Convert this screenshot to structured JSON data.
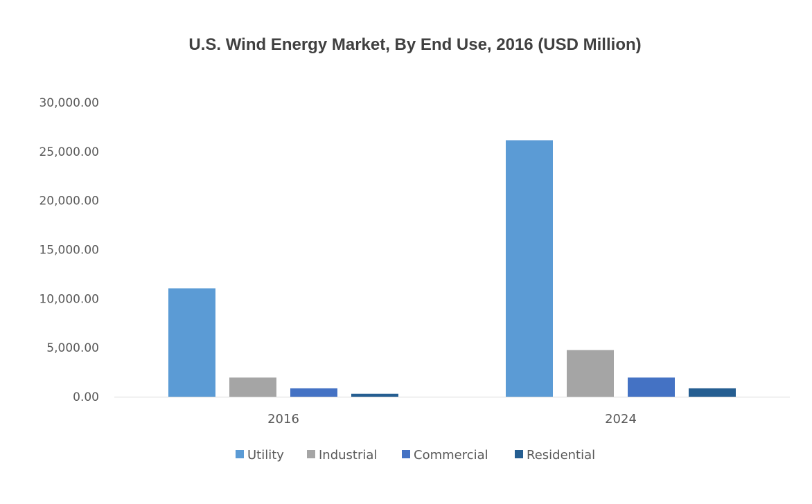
{
  "chart_data": {
    "type": "bar",
    "title": "U.S. Wind Energy Market, By End Use, 2016 (USD Million)",
    "xlabel": "",
    "ylabel": "",
    "ylim": [
      0,
      30000
    ],
    "yticks": [
      "0.00",
      "5,000.00",
      "10,000.00",
      "15,000.00",
      "20,000.00",
      "25,000.00",
      "30,000.00"
    ],
    "ytick_values": [
      0,
      5000,
      10000,
      15000,
      20000,
      25000,
      30000
    ],
    "categories": [
      "2016",
      "2024"
    ],
    "series": [
      {
        "name": "Utility",
        "color": "#5b9bd5",
        "values": [
          11050,
          26150
        ]
      },
      {
        "name": "Industrial",
        "color": "#a5a5a5",
        "values": [
          1950,
          4750
        ]
      },
      {
        "name": "Commercial",
        "color": "#4472c4",
        "values": [
          850,
          1950
        ]
      },
      {
        "name": "Residential",
        "color": "#255e91",
        "values": [
          300,
          850
        ]
      }
    ],
    "grid": false,
    "legend_position": "bottom"
  }
}
